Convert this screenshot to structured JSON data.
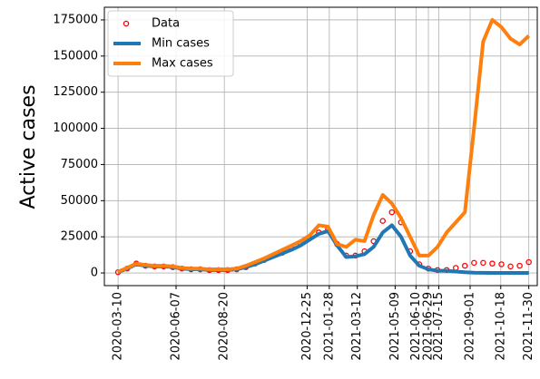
{
  "chart_data": {
    "type": "line",
    "y_label": "Active cases",
    "x": [
      "2020-03-10",
      "2020-03-24",
      "2020-04-07",
      "2020-04-21",
      "2020-05-05",
      "2020-05-19",
      "2020-06-02",
      "2020-06-16",
      "2020-06-30",
      "2020-07-14",
      "2020-07-28",
      "2020-08-11",
      "2020-08-25",
      "2020-09-08",
      "2020-09-22",
      "2020-10-06",
      "2020-10-20",
      "2020-11-03",
      "2020-11-17",
      "2020-12-01",
      "2020-12-15",
      "2020-12-29",
      "2021-01-12",
      "2021-01-26",
      "2021-02-09",
      "2021-02-23",
      "2021-03-09",
      "2021-03-23",
      "2021-04-06",
      "2021-04-20",
      "2021-05-04",
      "2021-05-18",
      "2021-06-01",
      "2021-06-15",
      "2021-06-29",
      "2021-07-13",
      "2021-07-27",
      "2021-08-10",
      "2021-08-24",
      "2021-09-07",
      "2021-09-21",
      "2021-10-05",
      "2021-10-19",
      "2021-11-02",
      "2021-11-16",
      "2021-11-30"
    ],
    "series": [
      {
        "name": "Data",
        "style": "scatter",
        "color": "#ff0000",
        "values": [
          500,
          3000,
          6500,
          5000,
          4500,
          4500,
          4000,
          3000,
          2500,
          2500,
          2000,
          2000,
          2000,
          2500,
          4000,
          6500,
          9000,
          12000,
          14000,
          17000,
          20000,
          24000,
          28000,
          30000,
          20000,
          12000,
          12000,
          15000,
          22000,
          36000,
          42000,
          35000,
          15000,
          6000,
          3000,
          2000,
          2000,
          3500,
          5000,
          7000,
          7000,
          6500,
          6000,
          4500,
          5000,
          7500
        ]
      },
      {
        "name": "Min cases",
        "style": "line",
        "color": "#1f77b4",
        "values": [
          500,
          3000,
          6000,
          5000,
          4500,
          4500,
          4000,
          3000,
          2500,
          2500,
          2000,
          2000,
          2000,
          2500,
          4000,
          6000,
          8500,
          11000,
          13500,
          16000,
          19000,
          23000,
          27000,
          29000,
          19000,
          11000,
          11500,
          13000,
          18000,
          28000,
          33000,
          25000,
          12000,
          5000,
          2500,
          1500,
          1500,
          1000,
          500,
          200,
          100,
          50,
          0,
          0,
          0,
          0
        ]
      },
      {
        "name": "Max cases",
        "style": "line",
        "color": "#ff7f0e",
        "values": [
          800,
          3500,
          6500,
          5500,
          5000,
          5000,
          4500,
          3500,
          3000,
          3000,
          2500,
          2500,
          2500,
          3000,
          5000,
          7500,
          10000,
          13000,
          16000,
          19000,
          22000,
          26000,
          33000,
          32000,
          20000,
          18000,
          23000,
          22000,
          40000,
          54000,
          48000,
          38000,
          25000,
          12000,
          12000,
          18000,
          28000,
          35000,
          42000,
          100000,
          160000,
          175000,
          170000,
          162000,
          158000,
          164000
        ]
      }
    ],
    "xlim": [
      "2020-02-18",
      "2021-12-13"
    ],
    "xticks": [
      "2020-03-10",
      "2020-06-07",
      "2020-08-20",
      "2020-12-25",
      "2021-01-28",
      "2021-03-12",
      "2021-05-09",
      "2021-06-10",
      "2021-06-29",
      "2021-07-15",
      "2021-09-01",
      "2021-10-18",
      "2021-11-30"
    ],
    "ylim": [
      -8750,
      183750
    ],
    "yticks": [
      0,
      25000,
      50000,
      75000,
      100000,
      125000,
      150000,
      175000
    ],
    "grid": true,
    "legend": "upper left"
  }
}
